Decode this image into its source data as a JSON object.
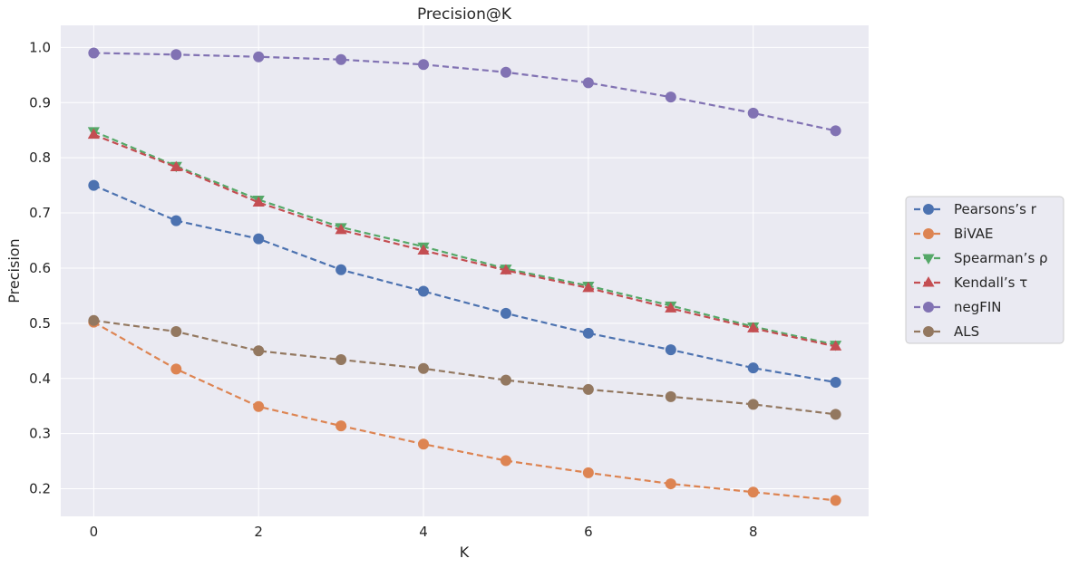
{
  "chart_data": {
    "type": "line",
    "title": "Precision@K",
    "xlabel": "K",
    "ylabel": "Precision",
    "xlim": [
      -0.4,
      9.4
    ],
    "ylim": [
      0.15,
      1.04
    ],
    "xticks": [
      0,
      2,
      4,
      6,
      8
    ],
    "yticks": [
      0.2,
      0.3,
      0.4,
      0.5,
      0.6,
      0.7,
      0.8,
      0.9,
      1.0
    ],
    "grid": true,
    "legend_position": "right",
    "x": [
      0,
      1,
      2,
      3,
      4,
      5,
      6,
      7,
      8,
      9
    ],
    "series": [
      {
        "name": "Pearsons’s r",
        "color": "#4c72b0",
        "marker": "circle",
        "values": [
          0.75,
          0.686,
          0.653,
          0.597,
          0.558,
          0.518,
          0.482,
          0.452,
          0.419,
          0.393
        ]
      },
      {
        "name": "BiVAE",
        "color": "#dd8452",
        "marker": "circle",
        "values": [
          0.502,
          0.417,
          0.349,
          0.314,
          0.281,
          0.251,
          0.229,
          0.209,
          0.194,
          0.179
        ]
      },
      {
        "name": "Spearman’s ρ",
        "color": "#55a868",
        "marker": "triangle-down",
        "values": [
          0.848,
          0.785,
          0.724,
          0.674,
          0.639,
          0.599,
          0.568,
          0.532,
          0.494,
          0.461
        ]
      },
      {
        "name": "Kendall’s τ",
        "color": "#c44e52",
        "marker": "triangle-up",
        "values": [
          0.842,
          0.783,
          0.719,
          0.669,
          0.632,
          0.596,
          0.564,
          0.527,
          0.491,
          0.458
        ]
      },
      {
        "name": "negFIN",
        "color": "#8172b3",
        "marker": "circle",
        "values": [
          0.99,
          0.987,
          0.983,
          0.978,
          0.969,
          0.955,
          0.936,
          0.91,
          0.881,
          0.849
        ]
      },
      {
        "name": "ALS",
        "color": "#937860",
        "marker": "circle",
        "values": [
          0.505,
          0.485,
          0.45,
          0.434,
          0.418,
          0.397,
          0.38,
          0.367,
          0.353,
          0.335
        ]
      }
    ]
  }
}
